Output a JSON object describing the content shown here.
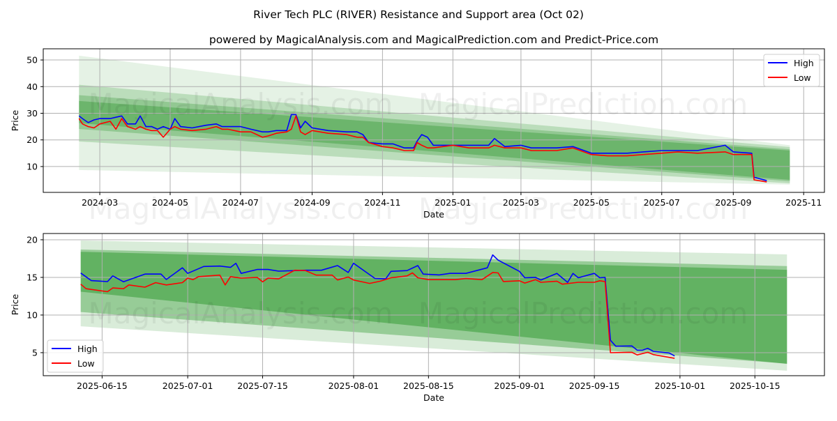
{
  "title": "River Tech PLC (RIVER) Resistance and Support area (Oct 02)",
  "subtitle": "powered by MagicalAnalysis.com and MagicalPrediction.com and Predict-Price.com",
  "watermark": [
    "MagicalAnalysis.com",
    "MagicalPrediction.com"
  ],
  "colors": {
    "high": "#0000ff",
    "low": "#ff0000",
    "band": "#008000",
    "grid": "#b0b0b0"
  },
  "chart_data": [
    {
      "type": "line",
      "xlabel": "Date",
      "ylabel": "Price",
      "xlim": [
        "2024-01-12",
        "2025-11-19"
      ],
      "ylim": [
        0.3,
        54.2
      ],
      "grid": true,
      "legend": {
        "placement": "top-right",
        "entries": [
          "High",
          "Low"
        ]
      },
      "xticks": [
        "2024-03",
        "2024-05",
        "2024-07",
        "2024-09",
        "2024-11",
        "2025-01",
        "2025-03",
        "2025-05",
        "2025-07",
        "2025-09",
        "2025-11"
      ],
      "yticks": [
        10,
        20,
        30,
        40,
        50
      ],
      "bands": {
        "start": "2024-02-12",
        "end": "2025-10-20",
        "levels": [
          {
            "start_upper": 51.6,
            "start_lower": 8.7,
            "end_upper": 18.0,
            "end_lower": 3.2,
            "opacity": 0.1
          },
          {
            "start_upper": 40.7,
            "start_lower": 19.4,
            "end_upper": 17.3,
            "end_lower": 3.7,
            "opacity": 0.18
          },
          {
            "start_upper": 36.8,
            "start_lower": 24.1,
            "end_upper": 16.5,
            "end_lower": 4.5,
            "opacity": 0.22
          },
          {
            "start_upper": 34.6,
            "start_lower": 26.3,
            "end_upper": 16.0,
            "end_lower": 5.0,
            "opacity": 0.26
          }
        ]
      },
      "x": [
        "2024-02-12",
        "2024-02-15",
        "2024-02-20",
        "2024-02-25",
        "2024-03-01",
        "2024-03-10",
        "2024-03-15",
        "2024-03-20",
        "2024-03-25",
        "2024-04-01",
        "2024-04-05",
        "2024-04-10",
        "2024-04-15",
        "2024-04-20",
        "2024-04-25",
        "2024-05-01",
        "2024-05-05",
        "2024-05-10",
        "2024-05-20",
        "2024-06-01",
        "2024-06-10",
        "2024-06-15",
        "2024-06-20",
        "2024-07-01",
        "2024-07-10",
        "2024-07-20",
        "2024-07-25",
        "2024-08-01",
        "2024-08-10",
        "2024-08-14",
        "2024-08-18",
        "2024-08-22",
        "2024-08-26",
        "2024-09-01",
        "2024-09-15",
        "2024-10-01",
        "2024-10-10",
        "2024-10-15",
        "2024-10-20",
        "2024-11-01",
        "2024-11-10",
        "2024-11-20",
        "2024-11-28",
        "2024-12-01",
        "2024-12-05",
        "2024-12-10",
        "2024-12-15",
        "2025-01-01",
        "2025-01-15",
        "2025-02-01",
        "2025-02-06",
        "2025-02-15",
        "2025-03-01",
        "2025-03-10",
        "2025-04-01",
        "2025-04-15",
        "2025-05-01",
        "2025-05-15",
        "2025-06-01",
        "2025-06-15",
        "2025-07-01",
        "2025-07-15",
        "2025-08-01",
        "2025-08-25",
        "2025-09-01",
        "2025-09-17",
        "2025-09-19",
        "2025-09-30"
      ],
      "series": [
        {
          "name": "High",
          "values": [
            29,
            28,
            26.5,
            27.5,
            28,
            28,
            28.5,
            29,
            26,
            26,
            29,
            25,
            25,
            24,
            25,
            24,
            28,
            25,
            24.5,
            25.5,
            26,
            25,
            25,
            25,
            24,
            23,
            23,
            23.5,
            23.5,
            29.5,
            29.5,
            24.5,
            27,
            24.5,
            23.5,
            23,
            23,
            22,
            19,
            18.5,
            18.5,
            17,
            17,
            19.5,
            22,
            21,
            18,
            18,
            18,
            18,
            20.5,
            17.5,
            18,
            17,
            17,
            17.5,
            15,
            15,
            15,
            15.5,
            16,
            16,
            16,
            18,
            15.5,
            15,
            6,
            4.7
          ]
        },
        {
          "name": "Low",
          "values": [
            28,
            26,
            25,
            24.5,
            26,
            27,
            24,
            28,
            25,
            24,
            25,
            24,
            23.5,
            23.5,
            21,
            24,
            25,
            24,
            23.5,
            24,
            25,
            24,
            24,
            23,
            23,
            21,
            21.5,
            22.5,
            23,
            24,
            29,
            23,
            22,
            23.5,
            22.5,
            22,
            21,
            21,
            19,
            17.5,
            17,
            16,
            16,
            19,
            18,
            17,
            17,
            18,
            17,
            17,
            18,
            17,
            17,
            16,
            16,
            17,
            14.5,
            14,
            14,
            14.5,
            15,
            15.5,
            15,
            15.5,
            14.5,
            14.5,
            5,
            4.2
          ]
        }
      ]
    },
    {
      "type": "line",
      "xlabel": "Date",
      "ylabel": "Price",
      "xlim": [
        "2025-06-04",
        "2025-10-28"
      ],
      "ylim": [
        1.94,
        20.83
      ],
      "grid": true,
      "legend": {
        "placement": "bottom-left",
        "entries": [
          "High",
          "Low"
        ]
      },
      "xticks": [
        "2025-06-15",
        "2025-07-01",
        "2025-07-15",
        "2025-08-01",
        "2025-08-15",
        "2025-09-01",
        "2025-09-15",
        "2025-10-01",
        "2025-10-15"
      ],
      "yticks": [
        5,
        10,
        15,
        20
      ],
      "bands": {
        "start": "2025-06-11",
        "end": "2025-10-21",
        "levels": [
          {
            "start_upper": 19.9,
            "start_lower": 8.5,
            "end_upper": 18.05,
            "end_lower": 2.6,
            "opacity": 0.15
          },
          {
            "start_upper": 18.7,
            "start_lower": 10.4,
            "end_upper": 16.5,
            "end_lower": 3.55,
            "opacity": 0.3
          },
          {
            "start_upper": 18.4,
            "start_lower": 13.1,
            "end_upper": 16.0,
            "end_lower": 3.5,
            "opacity": 0.35
          }
        ]
      },
      "series": [
        {
          "name": "High",
          "x": [
            "2025-06-11",
            "2025-06-13",
            "2025-06-16",
            "2025-06-17",
            "2025-06-19",
            "2025-06-23",
            "2025-06-26",
            "2025-06-27",
            "2025-06-30",
            "2025-07-01",
            "2025-07-04",
            "2025-07-07",
            "2025-07-09",
            "2025-07-10",
            "2025-07-11",
            "2025-07-14",
            "2025-07-16",
            "2025-07-18",
            "2025-07-23",
            "2025-07-26",
            "2025-07-29",
            "2025-07-31",
            "2025-08-01",
            "2025-08-05",
            "2025-08-07",
            "2025-08-08",
            "2025-08-11",
            "2025-08-13",
            "2025-08-14",
            "2025-08-17",
            "2025-08-19",
            "2025-08-22",
            "2025-08-26",
            "2025-08-27",
            "2025-08-28",
            "2025-09-01",
            "2025-09-02",
            "2025-09-04",
            "2025-09-05",
            "2025-09-08",
            "2025-09-10",
            "2025-09-11",
            "2025-09-12",
            "2025-09-15",
            "2025-09-16",
            "2025-09-17",
            "2025-09-18",
            "2025-09-19",
            "2025-09-22",
            "2025-09-23",
            "2025-09-24",
            "2025-09-25",
            "2025-09-26",
            "2025-09-29",
            "2025-09-30"
          ],
          "values": [
            15.58,
            14.57,
            14.44,
            15.2,
            14.41,
            15.44,
            15.44,
            14.72,
            16.27,
            15.53,
            16.45,
            16.51,
            16.33,
            16.88,
            15.53,
            16.05,
            16.05,
            15.83,
            15.95,
            15.95,
            16.57,
            15.65,
            16.88,
            14.86,
            14.8,
            15.8,
            15.9,
            16.57,
            15.44,
            15.33,
            15.53,
            15.53,
            16.27,
            17.99,
            17.29,
            15.8,
            14.95,
            15.0,
            14.65,
            15.53,
            14.34,
            15.53,
            14.95,
            15.53,
            14.95,
            15.0,
            6.64,
            5.86,
            5.89,
            5.33,
            5.33,
            5.57,
            5.18,
            4.96,
            4.56
          ]
        },
        {
          "name": "Low",
          "x": [
            "2025-06-11",
            "2025-06-12",
            "2025-06-16",
            "2025-06-17",
            "2025-06-19",
            "2025-06-20",
            "2025-06-23",
            "2025-06-25",
            "2025-06-27",
            "2025-06-30",
            "2025-07-01",
            "2025-07-02",
            "2025-07-03",
            "2025-07-07",
            "2025-07-08",
            "2025-07-09",
            "2025-07-11",
            "2025-07-14",
            "2025-07-15",
            "2025-07-16",
            "2025-07-18",
            "2025-07-21",
            "2025-07-23",
            "2025-07-25",
            "2025-07-28",
            "2025-07-29",
            "2025-07-31",
            "2025-08-01",
            "2025-08-04",
            "2025-08-06",
            "2025-08-08",
            "2025-08-11",
            "2025-08-12",
            "2025-08-13",
            "2025-08-15",
            "2025-08-20",
            "2025-08-22",
            "2025-08-25",
            "2025-08-27",
            "2025-08-28",
            "2025-08-29",
            "2025-09-01",
            "2025-09-02",
            "2025-09-04",
            "2025-09-05",
            "2025-09-08",
            "2025-09-09",
            "2025-09-12",
            "2025-09-15",
            "2025-09-16",
            "2025-09-17",
            "2025-09-18",
            "2025-09-22",
            "2025-09-23",
            "2025-09-25",
            "2025-09-26",
            "2025-09-30"
          ],
          "values": [
            14.1,
            13.5,
            13.1,
            13.6,
            13.5,
            14.0,
            13.7,
            14.3,
            14.0,
            14.3,
            14.9,
            14.7,
            15.1,
            15.3,
            14.0,
            15.1,
            14.9,
            15.0,
            14.4,
            14.9,
            14.8,
            15.95,
            15.9,
            15.3,
            15.3,
            14.65,
            15.05,
            14.65,
            14.2,
            14.5,
            14.95,
            15.2,
            15.6,
            14.95,
            14.7,
            14.7,
            14.85,
            14.7,
            15.65,
            15.6,
            14.45,
            14.55,
            14.25,
            14.7,
            14.35,
            14.5,
            14.1,
            14.35,
            14.35,
            14.55,
            14.45,
            5.0,
            5.05,
            4.7,
            5.05,
            4.75,
            4.25
          ]
        }
      ]
    }
  ]
}
